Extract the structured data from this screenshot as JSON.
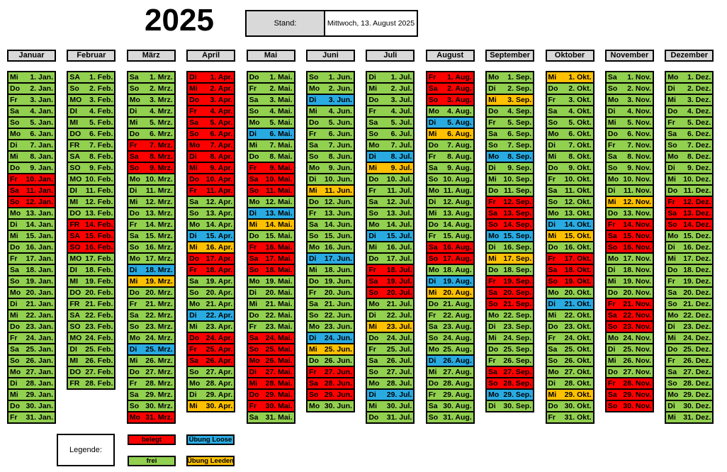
{
  "title": "2025",
  "stand": {
    "label": "Stand:",
    "value": "Mittwoch, 13. August 2025"
  },
  "legend": {
    "label": "Legende:",
    "items": [
      {
        "status": "b",
        "label": "belegt"
      },
      {
        "status": "l",
        "label": "Übung Loose"
      },
      {
        "status": "f",
        "label": "frei"
      },
      {
        "status": "d",
        "label": "Übung Leeden"
      }
    ]
  },
  "status_colors": {
    "f": "#92D050",
    "b": "#FF0000",
    "l": "#29ABE2",
    "d": "#FFC000"
  },
  "status_names": {
    "f": "frei",
    "b": "belegt",
    "l": "uebung-loose",
    "d": "uebung-leeden"
  },
  "months": [
    {
      "name": "Januar",
      "suffix": "Jan.",
      "weekdays": [
        "Mi",
        "Do",
        "Fr",
        "Sa",
        "So",
        "Mo",
        "Di",
        "Mi",
        "Do",
        "Fr",
        "Sa",
        "So",
        "Mo",
        "Di",
        "Mi",
        "Do",
        "Fr",
        "Sa",
        "So",
        "Mo",
        "Di",
        "Mi",
        "Do",
        "Fr",
        "Sa",
        "So",
        "Mo",
        "Di",
        "Mi",
        "Do",
        "Fr"
      ],
      "status": "fffffffffbbbfffffffffffffffffff"
    },
    {
      "name": "Februar",
      "suffix": "Feb.",
      "weekdays": [
        "SA",
        "So",
        "MO",
        "DI",
        "MI",
        "DO",
        "FR",
        "SA",
        "SO",
        "MO",
        "DI",
        "MI",
        "DO",
        "FR",
        "SA",
        "SO",
        "MO",
        "DI",
        "MI",
        "DO",
        "FR",
        "SA",
        "SO",
        "MO",
        "DI",
        "MI",
        "DO",
        "FR"
      ],
      "status": "fffffffffffffbbbffffffffffff"
    },
    {
      "name": "März",
      "suffix": "Mrz.",
      "weekdays": [
        "Sa",
        "So",
        "Mo",
        "Di",
        "Mi",
        "Do",
        "Fr",
        "Sa",
        "So",
        "Mo",
        "Di",
        "Mi",
        "Do",
        "Fr",
        "Sa",
        "So",
        "Mo",
        "Di",
        "Mi",
        "Do",
        "Fr",
        "Sa",
        "So",
        "Mo",
        "Di",
        "Mi",
        "Do",
        "Fr",
        "Sa",
        "So",
        "Mo"
      ],
      "status": "ffffffbbbffffffffldffffflfffffb"
    },
    {
      "name": "April",
      "suffix": "Apr.",
      "weekdays": [
        "Di",
        "Mi",
        "Do",
        "Fr",
        "Sa",
        "So",
        "Mo",
        "Di",
        "Mi",
        "Do",
        "Fr",
        "Sa",
        "So",
        "Mo",
        "Di",
        "Mi",
        "Do",
        "Fr",
        "Sa",
        "So",
        "Mo",
        "Di",
        "Mi",
        "Do",
        "Fr",
        "Sa",
        "So",
        "Mo",
        "Di",
        "Mi"
      ],
      "status": "bbbbbbbbbbbfffldbbffflfbbbfffd"
    },
    {
      "name": "Mai",
      "suffix": "Mai.",
      "weekdays": [
        "Do",
        "Fr",
        "Sa",
        "So",
        "Mo",
        "Di",
        "Mi",
        "Do",
        "Fr",
        "Sa",
        "So",
        "Mo",
        "Di",
        "Mi",
        "Do",
        "Fr",
        "Sa",
        "So",
        "Mo",
        "Di",
        "Mi",
        "Do",
        "Fr",
        "Sa",
        "So",
        "Mo",
        "Di",
        "Mi",
        "Do",
        "Fr",
        "Sa"
      ],
      "status": "ffffflffbbbfldfbbbfffffbbbbbbbf"
    },
    {
      "name": "Juni",
      "suffix": "Jun.",
      "weekdays": [
        "So",
        "Mo",
        "Di",
        "Mi",
        "Do",
        "Fr",
        "Sa",
        "So",
        "Mo",
        "Di",
        "Mi",
        "Do",
        "Fr",
        "Sa",
        "So",
        "Mo",
        "Di",
        "Mi",
        "Do",
        "Fr",
        "Sa",
        "So",
        "Mo",
        "Di",
        "Mi",
        "Do",
        "Fr",
        "Sa",
        "So",
        "Mo"
      ],
      "status": "fflfffffffdffffflffffffldfbbbf"
    },
    {
      "name": "Juli",
      "suffix": "Jul.",
      "weekdays": [
        "Di",
        "Mi",
        "Do",
        "Fr",
        "Sa",
        "So",
        "Mo",
        "Di",
        "Mi",
        "Do",
        "Fr",
        "Sa",
        "So",
        "Mo",
        "Di",
        "Mi",
        "Do",
        "Fr",
        "Sa",
        "So",
        "Mo",
        "Di",
        "Mi",
        "Do",
        "Fr",
        "Sa",
        "So",
        "Mo",
        "Di",
        "Mi",
        "Do"
      ],
      "status": "fffffffldffffflffbbbffdffffflff"
    },
    {
      "name": "August",
      "suffix": "Aug.",
      "weekdays": [
        "Fr",
        "Sa",
        "So",
        "Mo",
        "Di",
        "Mi",
        "Do",
        "Fr",
        "Sa",
        "So",
        "Mo",
        "Di",
        "Mi",
        "Do",
        "Fr",
        "Sa",
        "So",
        "Mo",
        "Di",
        "Mi",
        "Do",
        "Fr",
        "Sa",
        "So",
        "Mo",
        "Di",
        "Mi",
        "Do",
        "Fr",
        "Sa",
        "So"
      ],
      "status": "bbbfldfffffffffbbfldffffflfffff"
    },
    {
      "name": "September",
      "suffix": "Sep.",
      "weekdays": [
        "Mo",
        "Di",
        "Mi",
        "Do",
        "Fr",
        "Sa",
        "So",
        "Mo",
        "Di",
        "Mi",
        "Do",
        "Fr",
        "Sa",
        "So",
        "Mo",
        "Di",
        "Mi",
        "Do",
        "Fr",
        "Sa",
        "So",
        "Mo",
        "Di",
        "Mi",
        "Do",
        "Fr",
        "Sa",
        "So",
        "Mo",
        "Di"
      ],
      "status": "ffdfffflfffbbblfdfbbbfffffbblf"
    },
    {
      "name": "Oktober",
      "suffix": "Okt.",
      "weekdays": [
        "Mi",
        "Do",
        "Fr",
        "Sa",
        "So",
        "Mo",
        "Di",
        "Mi",
        "Do",
        "Fr",
        "Sa",
        "So",
        "Mo",
        "Di",
        "Mi",
        "Do",
        "Fr",
        "Sa",
        "So",
        "Mo",
        "Di",
        "Mi",
        "Do",
        "Fr",
        "Sa",
        "So",
        "Mo",
        "Di",
        "Mi",
        "Do",
        "Fr"
      ],
      "status": "dffffffffffffldfbbbflfffffffdff"
    },
    {
      "name": "November",
      "suffix": "Nov.",
      "weekdays": [
        "Sa",
        "So",
        "Mo",
        "Di",
        "Mi",
        "Do",
        "Fr",
        "Sa",
        "So",
        "Mo",
        "Di",
        "Mi",
        "Do",
        "Fr",
        "Sa",
        "So",
        "Mo",
        "Di",
        "Mi",
        "Do",
        "Fr",
        "Sa",
        "So",
        "Mo",
        "Di",
        "Mi",
        "Do",
        "Fr",
        "Sa",
        "So"
      ],
      "status": "fffffffffffdfbbbffffbbbffffbbb"
    },
    {
      "name": "Dezember",
      "suffix": "Dez.",
      "weekdays": [
        "Mo",
        "Di",
        "Mi",
        "Do",
        "Fr",
        "Sa",
        "So",
        "Mo",
        "Di",
        "Mi",
        "Do",
        "Fr",
        "Sa",
        "So",
        "Mo",
        "Di",
        "Mi",
        "Do",
        "Fr",
        "Sa",
        "So",
        "Mo",
        "Di",
        "Mi",
        "Do",
        "Fr",
        "Sa",
        "So",
        "Mo",
        "Di",
        "Mi"
      ],
      "status": "fffffffffffbbbfffffffffffffffff"
    }
  ]
}
